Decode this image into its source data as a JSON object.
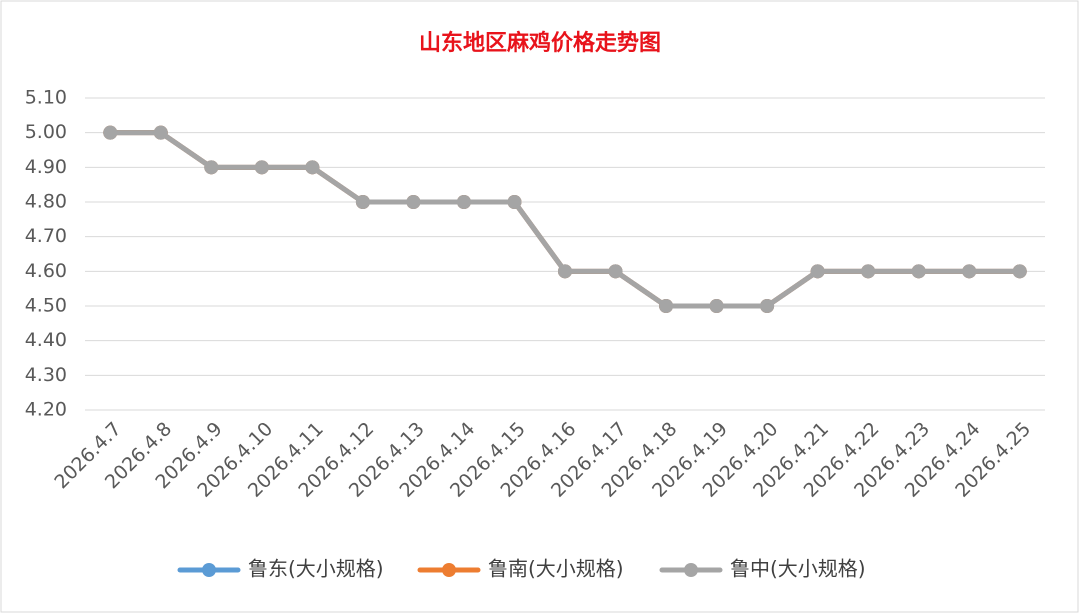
{
  "chart_data": {
    "type": "line",
    "title": "山东地区麻鸡价格走势图",
    "categories": [
      "2026.4.7",
      "2026.4.8",
      "2026.4.9",
      "2026.4.10",
      "2026.4.11",
      "2026.4.12",
      "2026.4.13",
      "2026.4.14",
      "2026.4.15",
      "2026.4.16",
      "2026.4.17",
      "2026.4.18",
      "2026.4.19",
      "2026.4.20",
      "2026.4.21",
      "2026.4.22",
      "2026.4.23",
      "2026.4.24",
      "2026.4.25"
    ],
    "series": [
      {
        "name": "鲁东(大小规格)",
        "color": "#5b9bd5",
        "values": [
          5.0,
          5.0,
          4.9,
          4.9,
          4.9,
          4.8,
          4.8,
          4.8,
          4.8,
          4.6,
          4.6,
          4.5,
          4.5,
          4.5,
          4.6,
          4.6,
          4.6,
          4.6,
          4.6
        ]
      },
      {
        "name": "鲁南(大小规格)",
        "color": "#ed7d31",
        "values": [
          5.0,
          5.0,
          4.9,
          4.9,
          4.9,
          4.8,
          4.8,
          4.8,
          4.8,
          4.6,
          4.6,
          4.5,
          4.5,
          4.5,
          4.6,
          4.6,
          4.6,
          4.6,
          4.6
        ]
      },
      {
        "name": "鲁中(大小规格)",
        "color": "#a5a5a5",
        "values": [
          5.0,
          5.0,
          4.9,
          4.9,
          4.9,
          4.8,
          4.8,
          4.8,
          4.8,
          4.6,
          4.6,
          4.5,
          4.5,
          4.5,
          4.6,
          4.6,
          4.6,
          4.6,
          4.6
        ]
      }
    ],
    "ylim": [
      4.2,
      5.1
    ],
    "yticks": [
      {
        "value": 4.2,
        "label": "4.20"
      },
      {
        "value": 4.3,
        "label": "4.30"
      },
      {
        "value": 4.4,
        "label": "4.40"
      },
      {
        "value": 4.5,
        "label": "4.50"
      },
      {
        "value": 4.6,
        "label": "4.60"
      },
      {
        "value": 4.7,
        "label": "4.70"
      },
      {
        "value": 4.8,
        "label": "4.80"
      },
      {
        "value": 4.9,
        "label": "4.90"
      },
      {
        "value": 5.0,
        "label": "5.00"
      },
      {
        "value": 5.1,
        "label": "5.10"
      }
    ],
    "grid": true,
    "legend": "bottom"
  }
}
